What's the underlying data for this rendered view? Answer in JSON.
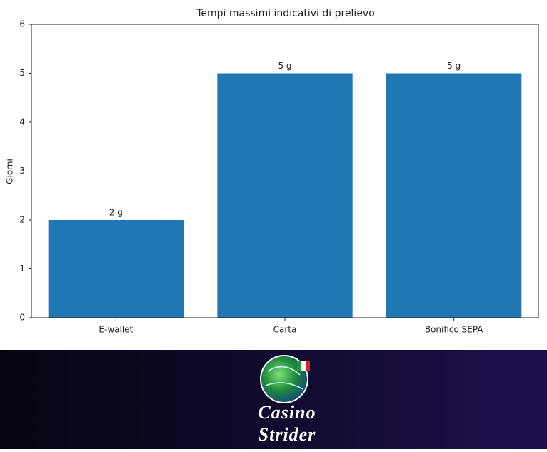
{
  "chart_data": {
    "type": "bar",
    "title": "Tempi massimi indicativi di prelievo",
    "ylabel": "Giorni",
    "categories": [
      "E-wallet",
      "Carta",
      "Bonifico SEPA"
    ],
    "values": [
      2,
      5,
      5
    ],
    "value_labels": [
      "2 g",
      "5 g",
      "5 g"
    ],
    "color": "#1f77b4",
    "ylim": [
      0,
      6
    ],
    "yticks": [
      0,
      1,
      2,
      3,
      4,
      5,
      6
    ],
    "grid": false
  },
  "banner": {
    "lines": [
      "Casino",
      "Strider"
    ]
  }
}
